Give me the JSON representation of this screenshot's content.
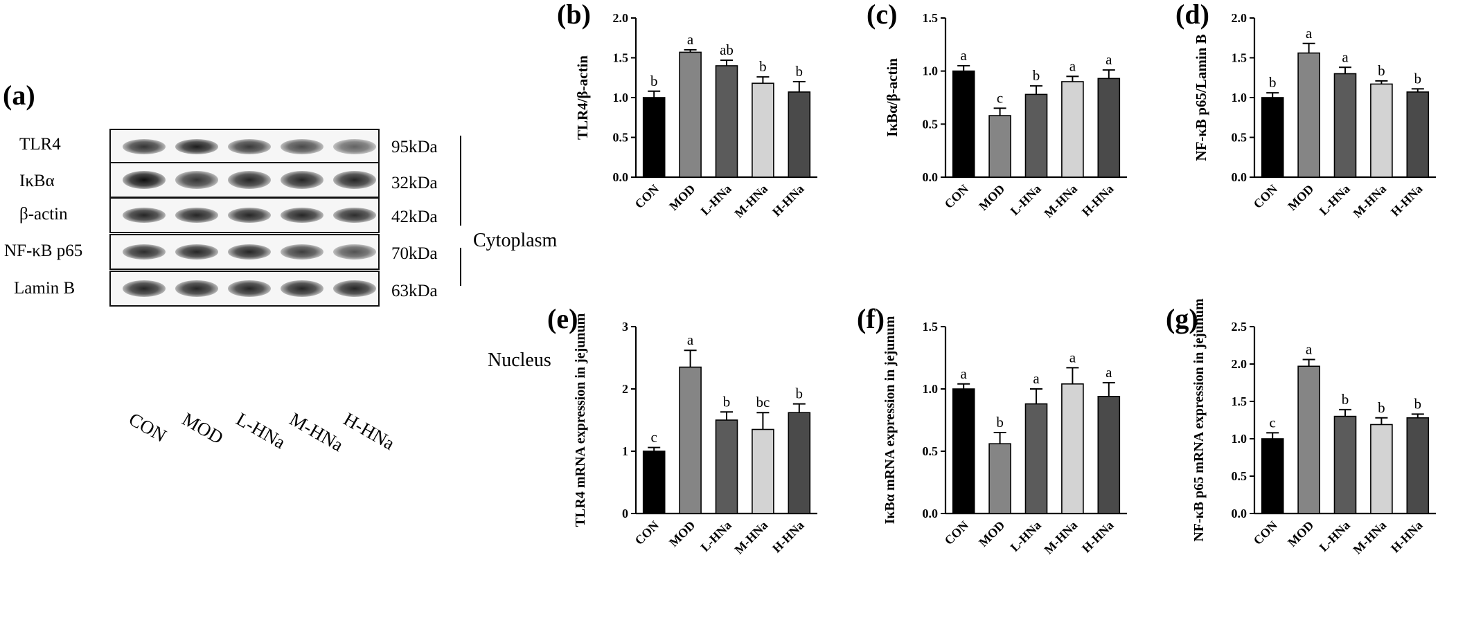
{
  "figure": {
    "panel_a": {
      "letter": "(a)",
      "proteins": [
        {
          "name": "TLR4",
          "size": "95kDa",
          "bands": [
            0.75,
            0.9,
            0.72,
            0.62,
            0.45
          ],
          "band_height": 0.45
        },
        {
          "name": "IκBα",
          "size": "32kDa",
          "bands": [
            1.0,
            0.75,
            0.85,
            0.85,
            0.85
          ],
          "band_height": 0.55
        },
        {
          "name": "β-actin",
          "size": "42kDa",
          "bands": [
            0.85,
            0.85,
            0.85,
            0.85,
            0.8
          ],
          "band_height": 0.45
        },
        {
          "name": "NF-κB p65",
          "size": "70kDa",
          "bands": [
            0.8,
            0.85,
            0.85,
            0.7,
            0.55
          ],
          "band_height": 0.45
        },
        {
          "name": "Lamin B",
          "size": "63kDa",
          "bands": [
            0.85,
            0.85,
            0.85,
            0.85,
            0.85
          ],
          "band_height": 0.5
        }
      ],
      "groups": [
        "Cytoplasm",
        "Nucleus"
      ],
      "lanes": [
        "CON",
        "MOD",
        "L-HNa",
        "M-HNa",
        "H-HNa"
      ]
    }
  },
  "chart_data": [
    {
      "panel": "(b)",
      "type": "bar",
      "categories": [
        "CON",
        "MOD",
        "L-HNa",
        "M-HNa",
        "H-HNa"
      ],
      "values": [
        1.0,
        1.57,
        1.4,
        1.18,
        1.07
      ],
      "errors": [
        0.08,
        0.03,
        0.07,
        0.08,
        0.13
      ],
      "sig_labels": [
        "b",
        "a",
        "ab",
        "b",
        "b"
      ],
      "colors": [
        "#000000",
        "#858585",
        "#5b5b5b",
        "#d3d3d3",
        "#4a4a4a"
      ],
      "ylabel": "TLR4/β-actin",
      "ylim": [
        0,
        2.0
      ],
      "yticks": [
        "0.0",
        "0.5",
        "1.0",
        "1.5",
        "2.0"
      ]
    },
    {
      "panel": "(c)",
      "type": "bar",
      "categories": [
        "CON",
        "MOD",
        "L-HNa",
        "M-HNa",
        "H-HNa"
      ],
      "values": [
        1.0,
        0.58,
        0.78,
        0.9,
        0.93
      ],
      "errors": [
        0.05,
        0.07,
        0.08,
        0.05,
        0.08
      ],
      "sig_labels": [
        "a",
        "c",
        "b",
        "a",
        "a"
      ],
      "colors": [
        "#000000",
        "#858585",
        "#5b5b5b",
        "#d3d3d3",
        "#4a4a4a"
      ],
      "ylabel": "IκBα/β-actin",
      "ylim": [
        0,
        1.5
      ],
      "yticks": [
        "0.0",
        "0.5",
        "1.0",
        "1.5"
      ]
    },
    {
      "panel": "(d)",
      "type": "bar",
      "categories": [
        "CON",
        "MOD",
        "L-HNa",
        "M-HNa",
        "H-HNa"
      ],
      "values": [
        1.0,
        1.56,
        1.3,
        1.17,
        1.07
      ],
      "errors": [
        0.06,
        0.12,
        0.08,
        0.04,
        0.04
      ],
      "sig_labels": [
        "b",
        "a",
        "a",
        "b",
        "b"
      ],
      "colors": [
        "#000000",
        "#858585",
        "#5b5b5b",
        "#d3d3d3",
        "#4a4a4a"
      ],
      "ylabel": "NF-κB p65/Lamin B",
      "ylim": [
        0,
        2.0
      ],
      "yticks": [
        "0.0",
        "0.5",
        "1.0",
        "1.5",
        "2.0"
      ]
    },
    {
      "panel": "(e)",
      "type": "bar",
      "categories": [
        "CON",
        "MOD",
        "L-HNa",
        "M-HNa",
        "H-HNa"
      ],
      "values": [
        1.0,
        2.35,
        1.5,
        1.35,
        1.62
      ],
      "errors": [
        0.06,
        0.27,
        0.13,
        0.27,
        0.14
      ],
      "sig_labels": [
        "c",
        "a",
        "b",
        "bc",
        "b"
      ],
      "colors": [
        "#000000",
        "#858585",
        "#5b5b5b",
        "#d3d3d3",
        "#4a4a4a"
      ],
      "ylabel": "TLR4 mRNA expression in jejunum",
      "ylim": [
        0,
        3
      ],
      "yticks": [
        "0",
        "1",
        "2",
        "3"
      ]
    },
    {
      "panel": "(f)",
      "type": "bar",
      "categories": [
        "CON",
        "MOD",
        "L-HNa",
        "M-HNa",
        "H-HNa"
      ],
      "values": [
        1.0,
        0.56,
        0.88,
        1.04,
        0.94
      ],
      "errors": [
        0.04,
        0.09,
        0.12,
        0.13,
        0.11
      ],
      "sig_labels": [
        "a",
        "b",
        "a",
        "a",
        "a"
      ],
      "colors": [
        "#000000",
        "#858585",
        "#5b5b5b",
        "#d3d3d3",
        "#4a4a4a"
      ],
      "ylabel": "IκBα mRNA expression in jejunum",
      "ylim": [
        0,
        1.5
      ],
      "yticks": [
        "0.0",
        "0.5",
        "1.0",
        "1.5"
      ]
    },
    {
      "panel": "(g)",
      "type": "bar",
      "categories": [
        "CON",
        "MOD",
        "L-HNa",
        "M-HNa",
        "H-HNa"
      ],
      "values": [
        1.0,
        1.97,
        1.3,
        1.19,
        1.28
      ],
      "errors": [
        0.08,
        0.09,
        0.09,
        0.09,
        0.05
      ],
      "sig_labels": [
        "c",
        "a",
        "b",
        "b",
        "b"
      ],
      "colors": [
        "#000000",
        "#858585",
        "#5b5b5b",
        "#d3d3d3",
        "#4a4a4a"
      ],
      "ylabel": "NF-κB p65 mRNA expression in jejunum",
      "ylim": [
        0,
        2.5
      ],
      "yticks": [
        "0.0",
        "0.5",
        "1.0",
        "1.5",
        "2.0",
        "2.5"
      ]
    }
  ]
}
